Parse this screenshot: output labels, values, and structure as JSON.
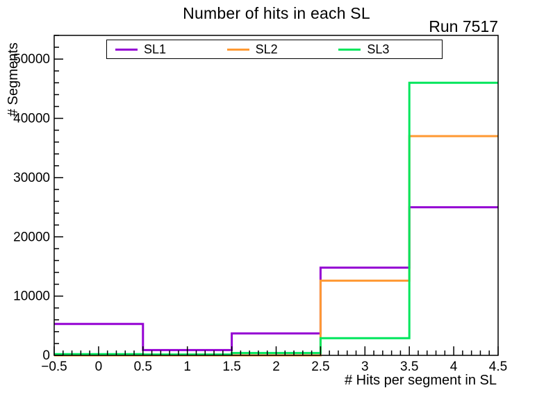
{
  "chart_data": {
    "type": "line",
    "subtype": "step-histogram",
    "title": "Number of hits in each SL",
    "annotation": "Run 7517",
    "xlabel": "# Hits per segment in SL",
    "ylabel": "# Segments",
    "xlim": [
      -0.5,
      4.5
    ],
    "ylim": [
      0,
      54000
    ],
    "x_ticks": [
      -0.5,
      0,
      0.5,
      1,
      1.5,
      2,
      2.5,
      3,
      3.5,
      4,
      4.5
    ],
    "y_ticks": [
      0,
      10000,
      20000,
      30000,
      40000,
      50000
    ],
    "x_minor_divisions": 5,
    "y_minor_divisions": 5,
    "grid": false,
    "background": "#ffffff",
    "axis_color": "#000000",
    "bin_edges": [
      -0.5,
      0.5,
      1.5,
      2.5,
      3.5,
      4.5
    ],
    "series": [
      {
        "name": "SL1",
        "color": "#9400d3",
        "values": [
          5300,
          900,
          3700,
          14800,
          25000
        ]
      },
      {
        "name": "SL2",
        "color": "#ff9933",
        "values": [
          0,
          0,
          0,
          12600,
          37000
        ]
      },
      {
        "name": "SL3",
        "color": "#00e65c",
        "values": [
          200,
          150,
          400,
          2900,
          46000
        ]
      }
    ],
    "legend": {
      "position": "top-inside",
      "entries": [
        "SL1",
        "SL2",
        "SL3"
      ]
    }
  }
}
